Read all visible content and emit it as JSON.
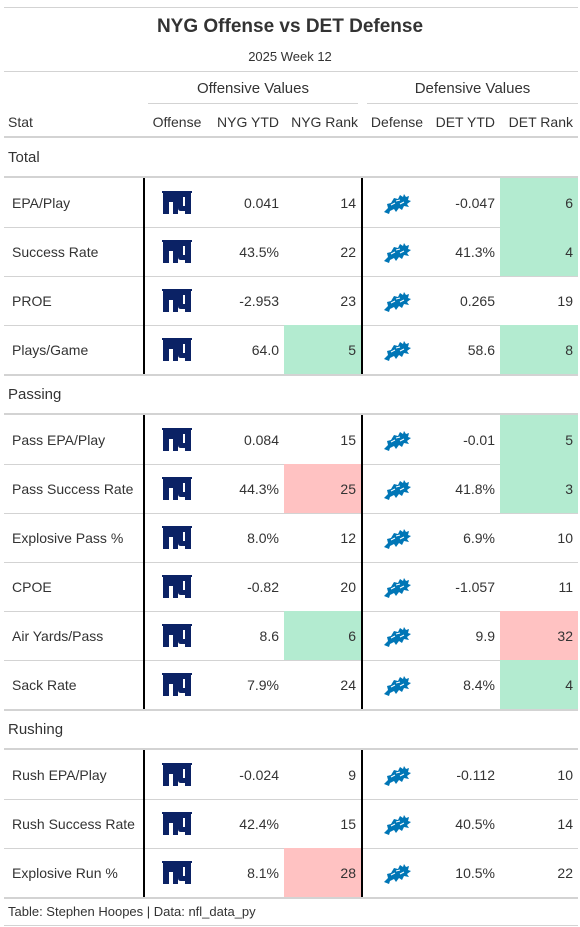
{
  "title": "NYG Offense vs DET Defense",
  "subtitle": "2025 Week 12",
  "spanners": {
    "offense": "Offensive Values",
    "defense": "Defensive Values"
  },
  "columns": [
    "Stat",
    "Offense",
    "NYG YTD",
    "NYG Rank",
    "Defense",
    "DET YTD",
    "DET Rank"
  ],
  "colors": {
    "good": "#b3ebd0",
    "bad": "#ffc2c2",
    "nyg_blue": "#0b2265",
    "det_blue": "#0076b6",
    "divider": "#000000",
    "rule": "#d3d3d3"
  },
  "icons": {
    "offense": "giants-ny-logo",
    "defense": "lions-logo"
  },
  "chart_data": {
    "type": "table",
    "title": "NYG Offense vs DET Defense",
    "subtitle": "2025 Week 12",
    "groups": [
      {
        "name": "Total",
        "rows": [
          {
            "stat": "EPA/Play",
            "nyg_ytd": "0.041",
            "nyg_rank": "14",
            "nyg_hl": "",
            "det_ytd": "-0.047",
            "det_rank": "6",
            "det_hl": "good"
          },
          {
            "stat": "Success Rate",
            "nyg_ytd": "43.5%",
            "nyg_rank": "22",
            "nyg_hl": "",
            "det_ytd": "41.3%",
            "det_rank": "4",
            "det_hl": "good"
          },
          {
            "stat": "PROE",
            "nyg_ytd": "-2.953",
            "nyg_rank": "23",
            "nyg_hl": "",
            "det_ytd": "0.265",
            "det_rank": "19",
            "det_hl": ""
          },
          {
            "stat": "Plays/Game",
            "nyg_ytd": "64.0",
            "nyg_rank": "5",
            "nyg_hl": "good",
            "det_ytd": "58.6",
            "det_rank": "8",
            "det_hl": "good"
          }
        ]
      },
      {
        "name": "Passing",
        "rows": [
          {
            "stat": "Pass EPA/Play",
            "nyg_ytd": "0.084",
            "nyg_rank": "15",
            "nyg_hl": "",
            "det_ytd": "-0.01",
            "det_rank": "5",
            "det_hl": "good"
          },
          {
            "stat": "Pass Success Rate",
            "nyg_ytd": "44.3%",
            "nyg_rank": "25",
            "nyg_hl": "bad",
            "det_ytd": "41.8%",
            "det_rank": "3",
            "det_hl": "good"
          },
          {
            "stat": "Explosive Pass %",
            "nyg_ytd": "8.0%",
            "nyg_rank": "12",
            "nyg_hl": "",
            "det_ytd": "6.9%",
            "det_rank": "10",
            "det_hl": ""
          },
          {
            "stat": "CPOE",
            "nyg_ytd": "-0.82",
            "nyg_rank": "20",
            "nyg_hl": "",
            "det_ytd": "-1.057",
            "det_rank": "11",
            "det_hl": ""
          },
          {
            "stat": "Air Yards/Pass",
            "nyg_ytd": "8.6",
            "nyg_rank": "6",
            "nyg_hl": "good",
            "det_ytd": "9.9",
            "det_rank": "32",
            "det_hl": "bad"
          },
          {
            "stat": "Sack Rate",
            "nyg_ytd": "7.9%",
            "nyg_rank": "24",
            "nyg_hl": "",
            "det_ytd": "8.4%",
            "det_rank": "4",
            "det_hl": "good"
          }
        ]
      },
      {
        "name": "Rushing",
        "rows": [
          {
            "stat": "Rush EPA/Play",
            "nyg_ytd": "-0.024",
            "nyg_rank": "9",
            "nyg_hl": "",
            "det_ytd": "-0.112",
            "det_rank": "10",
            "det_hl": ""
          },
          {
            "stat": "Rush Success Rate",
            "nyg_ytd": "42.4%",
            "nyg_rank": "15",
            "nyg_hl": "",
            "det_ytd": "40.5%",
            "det_rank": "14",
            "det_hl": ""
          },
          {
            "stat": "Explosive Run %",
            "nyg_ytd": "8.1%",
            "nyg_rank": "28",
            "nyg_hl": "bad",
            "det_ytd": "10.5%",
            "det_rank": "22",
            "det_hl": ""
          }
        ]
      }
    ]
  },
  "footer": "Table: Stephen Hoopes | Data: nfl_data_py"
}
